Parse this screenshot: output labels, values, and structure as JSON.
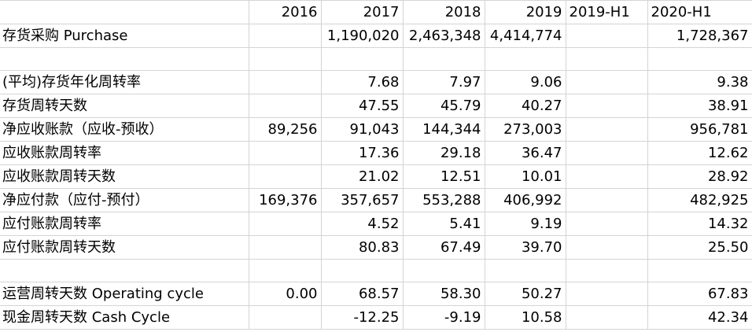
{
  "columns": [
    "",
    "2016",
    "2017",
    "2018",
    "2019",
    "2019-H1",
    "2020-H1"
  ],
  "rows": [
    [
      "存货采购 Purchase",
      "",
      "1,190,020",
      "2,463,348",
      "4,414,774",
      "",
      "1,728,367"
    ],
    [
      "",
      "",
      "",
      "",
      "",
      "",
      ""
    ],
    [
      "(平均)存货年化周转率",
      "",
      "7.68",
      "7.97",
      "9.06",
      "",
      "9.38"
    ],
    [
      "存货周转天数",
      "",
      "47.55",
      "45.79",
      "40.27",
      "",
      "38.91"
    ],
    [
      "净应收账款（应收-预收）",
      "89,256",
      "91,043",
      "144,344",
      "273,003",
      "",
      "956,781"
    ],
    [
      "应收账款周转率",
      "",
      "17.36",
      "29.18",
      "36.47",
      "",
      "12.62"
    ],
    [
      "应收账款周转天数",
      "",
      "21.02",
      "12.51",
      "10.01",
      "",
      "28.92"
    ],
    [
      "净应付款（应付-预付）",
      "169,376",
      "357,657",
      "553,288",
      "406,992",
      "",
      "482,925"
    ],
    [
      "应付账款周转率",
      "",
      "4.52",
      "5.41",
      "9.19",
      "",
      "14.32"
    ],
    [
      "应付账款周转天数",
      "",
      "80.83",
      "67.49",
      "39.70",
      "",
      "25.50"
    ],
    [
      "",
      "",
      "",
      "",
      "",
      "",
      ""
    ],
    [
      "运营周转天数 Operating cycle",
      "0.00",
      "68.57",
      "58.30",
      "50.27",
      "",
      "67.83"
    ],
    [
      "现金周转天数 Cash Cycle",
      "",
      "-12.25",
      "-9.19",
      "10.58",
      "",
      "42.34"
    ]
  ]
}
